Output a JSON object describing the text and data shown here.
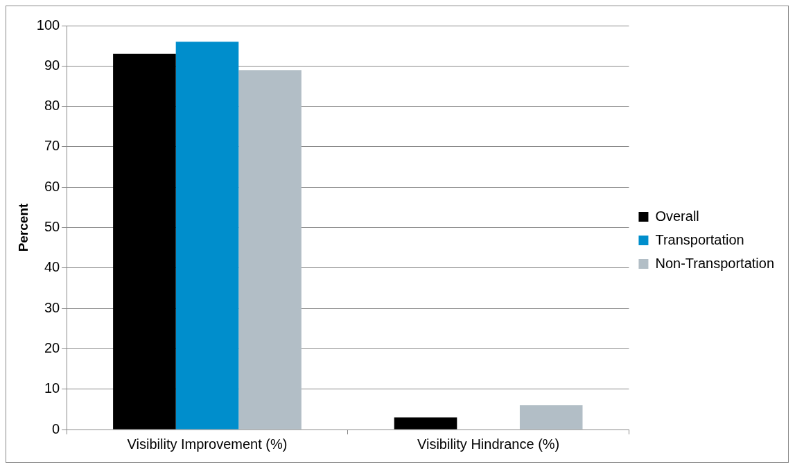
{
  "chart_data": {
    "type": "bar",
    "ylabel": "Percent",
    "categories": [
      "Visibility Improvement (%)",
      "Visibility Hindrance (%)"
    ],
    "series": [
      {
        "name": "Overall",
        "color": "#000000",
        "values": [
          93,
          3
        ]
      },
      {
        "name": "Transportation",
        "color": "#008ecc",
        "values": [
          96,
          0
        ]
      },
      {
        "name": "Non-Transportation",
        "color": "#b2bec6",
        "values": [
          89,
          6
        ]
      }
    ],
    "ylim": [
      0,
      100
    ],
    "yticks": [
      0,
      10,
      20,
      30,
      40,
      50,
      60,
      70,
      80,
      90,
      100
    ],
    "grid": "y",
    "legend": "right"
  }
}
